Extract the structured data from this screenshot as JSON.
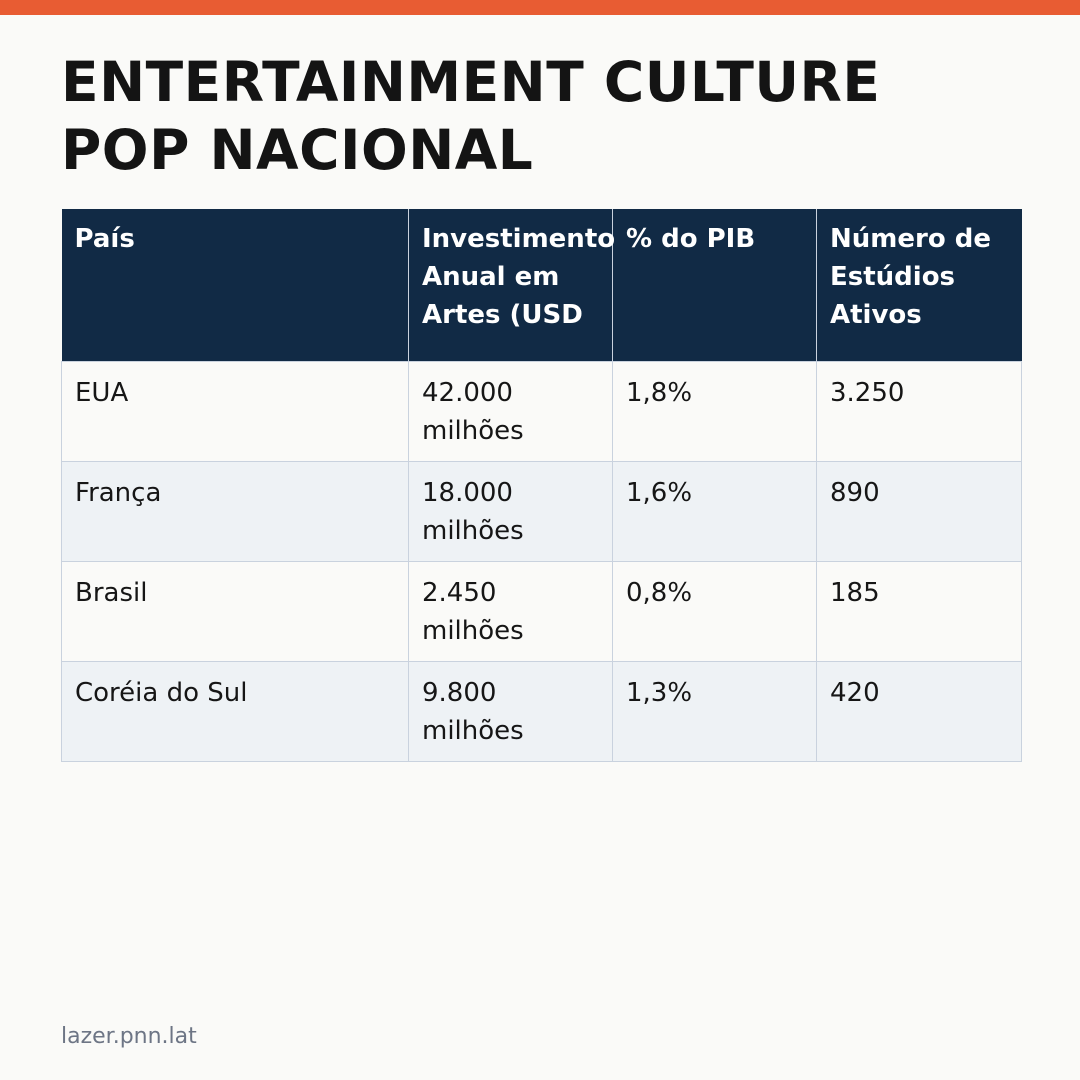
{
  "colors": {
    "accent": "#e85c33",
    "header_bg": "#112a45",
    "row_alt": "#eef2f5",
    "border": "#c9d2de"
  },
  "title": {
    "line1": "ENTERTAINMENT CULTURE",
    "line2": "POP NACIONAL"
  },
  "table": {
    "headers": [
      "País",
      "Investimento Anual em Artes (USD",
      "% do PIB",
      "Número de Estúdios Ativos"
    ],
    "rows": [
      [
        "EUA",
        "42.000 milhões",
        "1,8%",
        "3.250"
      ],
      [
        "França",
        "18.000 milhões",
        "1,6%",
        "890"
      ],
      [
        "Brasil",
        "2.450 milhões",
        "0,8%",
        "185"
      ],
      [
        "Coréia do Sul",
        "9.800 milhões",
        "1,3%",
        "420"
      ]
    ]
  },
  "footer": {
    "source": "lazer.pnn.lat"
  }
}
